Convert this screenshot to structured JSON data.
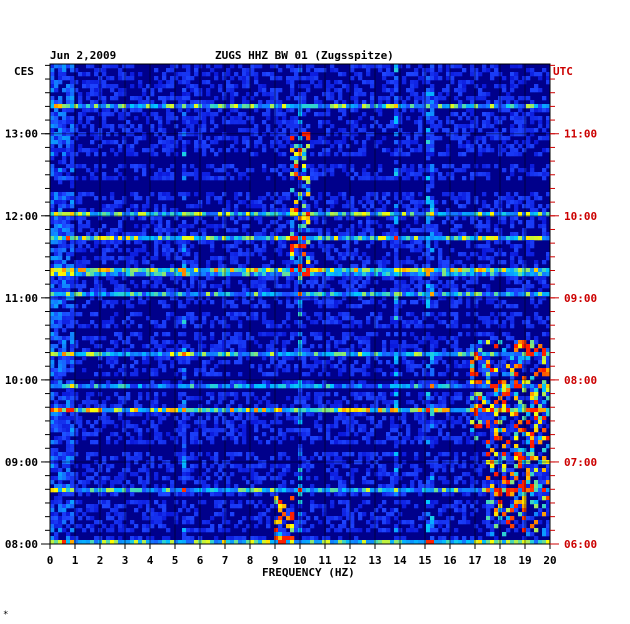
{
  "chart_data": {
    "type": "heatmap",
    "title_date": "Jun 2,2009",
    "title_station": "ZUGS HHZ BW 01 (Zugsspitze)",
    "xlabel": "FREQUENCY (HZ)",
    "left_axis_label": "CES",
    "right_axis_label": "UTC",
    "x_range": [
      0,
      20
    ],
    "x_ticks": [
      "0",
      "1",
      "2",
      "3",
      "4",
      "5",
      "6",
      "7",
      "8",
      "9",
      "10",
      "11",
      "12",
      "13",
      "14",
      "15",
      "16",
      "17",
      "18",
      "19",
      "20"
    ],
    "left_time_range_hours": [
      8.0,
      13.85
    ],
    "left_ticks": [
      {
        "label": "13:00",
        "hour": 13
      },
      {
        "label": "12:00",
        "hour": 12
      },
      {
        "label": "11:00",
        "hour": 11
      },
      {
        "label": "10:00",
        "hour": 10
      },
      {
        "label": "09:00",
        "hour": 9
      },
      {
        "label": "08:00",
        "hour": 8
      }
    ],
    "right_ticks": [
      {
        "label": "11:00",
        "hour": 13
      },
      {
        "label": "10:00",
        "hour": 12
      },
      {
        "label": "09:00",
        "hour": 11
      },
      {
        "label": "08:00",
        "hour": 10
      },
      {
        "label": "07:00",
        "hour": 9
      },
      {
        "label": "06:00",
        "hour": 8
      }
    ],
    "grid": true,
    "colors": {
      "left_axis": "#000000",
      "right_axis": "#cc0000",
      "background_low": "#00008b",
      "mid": "#1e3cff",
      "high": "#00e5ff",
      "peak_yellow": "#ffff00",
      "peak_red": "#ff2000"
    },
    "hotspots": [
      {
        "f_min": 9.6,
        "f_max": 10.4,
        "t_start": 11.2,
        "t_end": 13.0
      },
      {
        "f_min": 9.0,
        "f_max": 9.8,
        "t_start": 8.0,
        "t_end": 8.6
      },
      {
        "f_min": 16.8,
        "f_max": 20.0,
        "t_start": 9.2,
        "t_end": 10.5
      },
      {
        "f_min": 17.5,
        "f_max": 20.0,
        "t_start": 8.1,
        "t_end": 9.2
      }
    ],
    "vertical_lines_hz": [
      5.4,
      10.0,
      13.8,
      15.2
    ]
  },
  "footer_mark": "*"
}
